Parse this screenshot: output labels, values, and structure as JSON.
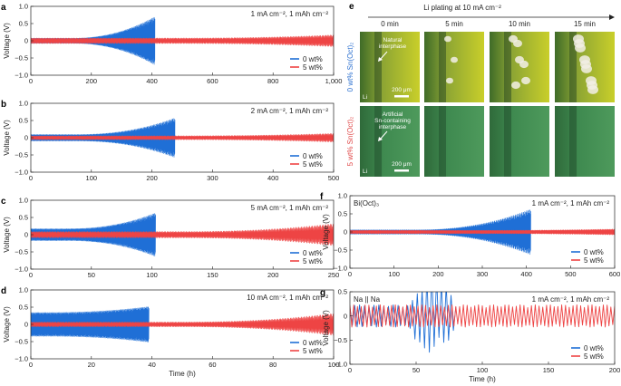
{
  "chart_data": [
    {
      "id": "a",
      "type": "line",
      "panel_label": "a",
      "annotation": "1 mA cm⁻², 1 mAh cm⁻²",
      "xlim": [
        0,
        1000
      ],
      "ylim": [
        -1.0,
        1.0
      ],
      "xticks": [
        "0",
        "200",
        "400",
        "600",
        "800",
        "1,000"
      ],
      "yticks": [
        "−1.0",
        "−0.5",
        "0",
        "0.5",
        "1.0"
      ],
      "xlabel": "",
      "ylabel": "Voltage (V)",
      "series": [
        {
          "name": "0 wt%",
          "color": "#1f6fd6",
          "end": 410,
          "base": 0.06,
          "grow": [
            260,
            0.55
          ],
          "asym": 1.0
        },
        {
          "name": "5 wt%",
          "color": "#ee4444",
          "end": 1000,
          "base": 0.07,
          "grow": [
            1000,
            0.08
          ],
          "asym": 1.0
        }
      ]
    },
    {
      "id": "b",
      "type": "line",
      "panel_label": "b",
      "annotation": "2 mA cm⁻², 1 mAh cm⁻²",
      "xlim": [
        0,
        500
      ],
      "ylim": [
        -1.0,
        1.0
      ],
      "xticks": [
        "0",
        "100",
        "200",
        "300",
        "400",
        "500"
      ],
      "yticks": [
        "−1.0",
        "−0.5",
        "0",
        "0.5",
        "1.0"
      ],
      "xlabel": "",
      "ylabel": "Voltage (V)",
      "series": [
        {
          "name": "0 wt%",
          "color": "#1f6fd6",
          "end": 238,
          "base": 0.08,
          "grow": [
            150,
            0.42
          ],
          "asym": 1.0
        },
        {
          "name": "5 wt%",
          "color": "#ee4444",
          "end": 500,
          "base": 0.05,
          "grow": [
            500,
            0.06
          ],
          "asym": 1.0
        }
      ]
    },
    {
      "id": "c",
      "type": "line",
      "panel_label": "c",
      "annotation": "5 mA cm⁻², 1 mAh cm⁻²",
      "xlim": [
        0,
        250
      ],
      "ylim": [
        -1.0,
        1.0
      ],
      "xticks": [
        "0",
        "50",
        "100",
        "150",
        "200",
        "250"
      ],
      "yticks": [
        "−1.0",
        "−0.5",
        "0",
        "0.5",
        "1.0"
      ],
      "xlabel": "",
      "ylabel": "Voltage (V)",
      "series": [
        {
          "name": "0 wt%",
          "color": "#1f6fd6",
          "end": 103,
          "base": 0.15,
          "grow": [
            60,
            0.4
          ],
          "asym": 1.0
        },
        {
          "name": "5 wt%",
          "color": "#ee4444",
          "end": 250,
          "base": 0.08,
          "grow": [
            250,
            0.2
          ],
          "asym": 1.0
        }
      ]
    },
    {
      "id": "d",
      "type": "line",
      "panel_label": "d",
      "annotation": "10 mA cm⁻², 1 mAh cm⁻²",
      "xlim": [
        0,
        100
      ],
      "ylim": [
        -1.0,
        1.0
      ],
      "xticks": [
        "0",
        "20",
        "40",
        "60",
        "80",
        "100"
      ],
      "yticks": [
        "−1.0",
        "−0.5",
        "0",
        "0.5",
        "1.0"
      ],
      "xlabel": "Time (h)",
      "ylabel": "Voltage (V)",
      "series": [
        {
          "name": "0 wt%",
          "color": "#1f6fd6",
          "end": 39,
          "base": 0.3,
          "grow": [
            10,
            0.15
          ],
          "asym": 1.0
        },
        {
          "name": "5 wt%",
          "color": "#ee4444",
          "end": 100,
          "base": 0.06,
          "grow": [
            100,
            0.22
          ],
          "asym": 1.0
        }
      ]
    },
    {
      "id": "f",
      "type": "line",
      "panel_label": "f",
      "annotation": "1 mA cm⁻², 1 mAh cm⁻²",
      "corner_label": "Bi(Oct)₃",
      "xlim": [
        0,
        600
      ],
      "ylim": [
        -1.0,
        1.0
      ],
      "xticks": [
        "0",
        "100",
        "200",
        "300",
        "400",
        "500",
        "600"
      ],
      "yticks": [
        "−1.0",
        "−0.5",
        "0",
        "0.5",
        "1.0"
      ],
      "xlabel": "",
      "ylabel": "Voltage (V)",
      "series": [
        {
          "name": "0 wt%",
          "color": "#1f6fd6",
          "end": 410,
          "base": 0.05,
          "grow": [
            300,
            0.5
          ],
          "asym": 1.0
        },
        {
          "name": "5 wt%",
          "color": "#ee4444",
          "end": 600,
          "base": 0.04,
          "grow": [
            600,
            0.03
          ],
          "asym": 1.0
        }
      ]
    },
    {
      "id": "g",
      "type": "line",
      "panel_label": "g",
      "annotation": "1 mA cm⁻², 1 mAh cm⁻²",
      "corner_label": "Na || Na",
      "xlim": [
        0,
        200
      ],
      "ylim": [
        -1.0,
        0.5
      ],
      "xticks": [
        "0",
        "50",
        "100",
        "150",
        "200"
      ],
      "yticks": [
        "−1.0",
        "−0.5",
        "0",
        "0.5"
      ],
      "xlabel": "Time (h)",
      "ylabel": "Voltage (V)",
      "series": [
        {
          "name": "0 wt%",
          "color": "#1f6fd6",
          "end": 80,
          "base": 0.2,
          "grow": [
            40,
            0.0
          ],
          "dip": [
            45,
            80,
            0.65
          ],
          "asym": 1.0,
          "cycles": 22
        },
        {
          "name": "5 wt%",
          "color": "#ee4444",
          "end": 200,
          "base": 0.2,
          "grow": [
            200,
            0.0
          ],
          "asym": 1.0,
          "cycles": 70
        }
      ]
    }
  ],
  "panel_e": {
    "label": "e",
    "title": "Li plating at 10 mA cm⁻²",
    "times": [
      "0 min",
      "5 min",
      "10 min",
      "15 min"
    ],
    "rows": [
      {
        "side_label": "0 wt% Sn(Oct)₂",
        "tone": "yellow",
        "note_line1": "Natural",
        "note_line2": "interphase",
        "note_line3": "",
        "li": "Li",
        "scale": "200 μm"
      },
      {
        "side_label": "5 wt% Sn(Oct)₂",
        "tone": "green",
        "note_line1": "Artificial",
        "note_line2": "Sn-containing",
        "note_line3": "interphase",
        "li": "Li",
        "scale": "200 μm"
      }
    ]
  },
  "colors": {
    "blue": "#1f6fd6",
    "red": "#ee4444"
  }
}
